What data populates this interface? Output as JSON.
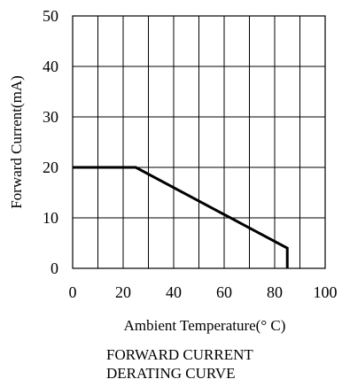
{
  "chart_data": {
    "type": "line",
    "title": "FORWARD CURRENT\nDERATING CURVE",
    "title_lines": [
      "FORWARD CURRENT",
      "DERATING CURVE"
    ],
    "xlabel": "Ambient Temperature(° C)",
    "ylabel": "Forward  Current(mA)",
    "xlim": [
      0,
      100
    ],
    "ylim": [
      0,
      50
    ],
    "xticks": [
      0,
      20,
      40,
      60,
      80,
      100
    ],
    "yticks": [
      0,
      10,
      20,
      30,
      40,
      50
    ],
    "grid": true,
    "x_grid_step": 10,
    "y_grid_step": 10,
    "series": [
      {
        "x": [
          0,
          25,
          85,
          85
        ],
        "y": [
          20,
          20,
          4,
          0
        ],
        "color": "#000000"
      }
    ]
  }
}
